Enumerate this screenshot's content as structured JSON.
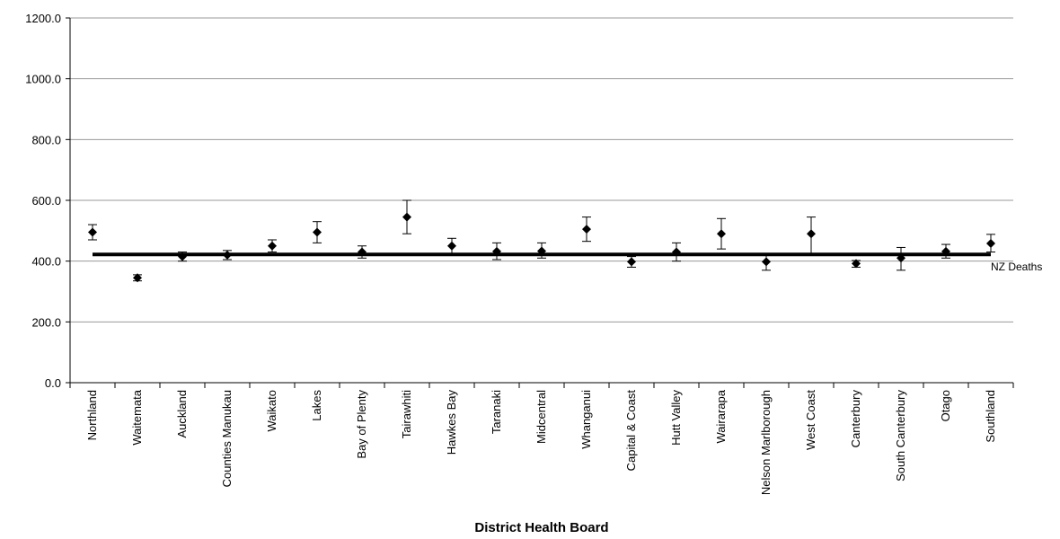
{
  "chart_data": {
    "type": "scatter",
    "title": "",
    "xlabel": "District Health Board",
    "ylabel": "",
    "ylim": [
      0,
      1200
    ],
    "yticks": [
      0,
      200,
      400,
      600,
      800,
      1000,
      1200
    ],
    "ytick_labels": [
      "0.0",
      "200.0",
      "400.0",
      "600.0",
      "800.0",
      "1000.0",
      "1200.0"
    ],
    "grid": true,
    "categories": [
      "Northland",
      "Waitemata",
      "Auckland",
      "Counties Manukau",
      "Waikato",
      "Lakes",
      "Bay of Plenty",
      "Tairawhiti",
      "Hawkes Bay",
      "Taranaki",
      "Midcentral",
      "Whanganui",
      "Capital & Coast",
      "Hutt Valley",
      "Wairarapa",
      "Nelson Marlborough",
      "West Coast",
      "Canterbury",
      "South Canterbury",
      "Otago",
      "Southland"
    ],
    "values": [
      495,
      345,
      415,
      420,
      450,
      495,
      430,
      545,
      450,
      432,
      433,
      505,
      398,
      430,
      490,
      398,
      490,
      392,
      410,
      432,
      458
    ],
    "lower": [
      470,
      335,
      400,
      405,
      430,
      460,
      410,
      490,
      425,
      405,
      410,
      465,
      380,
      400,
      440,
      370,
      425,
      380,
      370,
      410,
      430
    ],
    "upper": [
      520,
      355,
      430,
      435,
      470,
      530,
      450,
      600,
      475,
      460,
      460,
      545,
      415,
      460,
      540,
      425,
      545,
      402,
      445,
      455,
      488
    ],
    "reference": {
      "name": "NZ Deaths",
      "value": 422
    }
  }
}
